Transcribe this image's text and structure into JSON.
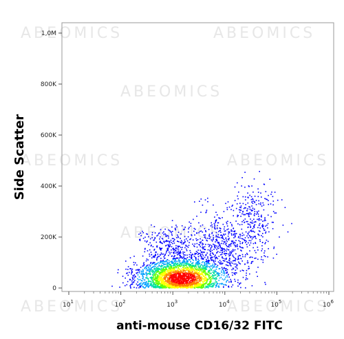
{
  "watermark": "ABEOMICS",
  "chart_data": {
    "type": "scatter",
    "style": "density dot plot",
    "xlabel": "anti-mouse CD16/32 FITC",
    "ylabel": "Side Scatter",
    "x_scale": "log",
    "xlim": [
      10,
      1000000
    ],
    "ylim": [
      0,
      1000000
    ],
    "x_ticks": [
      {
        "value": 10,
        "base": "10",
        "exp": "1"
      },
      {
        "value": 100,
        "base": "10",
        "exp": "2"
      },
      {
        "value": 1000,
        "base": "10",
        "exp": "3"
      },
      {
        "value": 10000,
        "base": "10",
        "exp": "4"
      },
      {
        "value": 100000,
        "base": "10",
        "exp": "5"
      },
      {
        "value": 1000000,
        "base": "10",
        "exp": "6"
      }
    ],
    "y_ticks": [
      {
        "value": 0,
        "label": "0"
      },
      {
        "value": 200000,
        "label": "200K"
      },
      {
        "value": 400000,
        "label": "400K"
      },
      {
        "value": 600000,
        "label": "600K"
      },
      {
        "value": 800000,
        "label": "800K"
      },
      {
        "value": 1000000,
        "label": "1,0M"
      }
    ],
    "density_colors": [
      "#0000ff",
      "#00a0ff",
      "#00e0a0",
      "#60ff00",
      "#ffff00",
      "#ff8000",
      "#ff0000"
    ],
    "populations": [
      {
        "x_log_center": 3.1,
        "x_log_sd": 0.38,
        "y_center": 45000,
        "y_sd": 40000,
        "count": 2600
      },
      {
        "x_log_center": 3.9,
        "x_log_sd": 0.35,
        "y_center": 150000,
        "y_sd": 75000,
        "count": 650
      },
      {
        "x_log_center": 4.55,
        "x_log_sd": 0.22,
        "y_center": 270000,
        "y_sd": 80000,
        "count": 280
      },
      {
        "x_log_center": 2.9,
        "x_log_sd": 0.25,
        "y_center": 170000,
        "y_sd": 35000,
        "count": 220
      }
    ],
    "density_peak": {
      "x": 1500,
      "y": 40000
    }
  }
}
